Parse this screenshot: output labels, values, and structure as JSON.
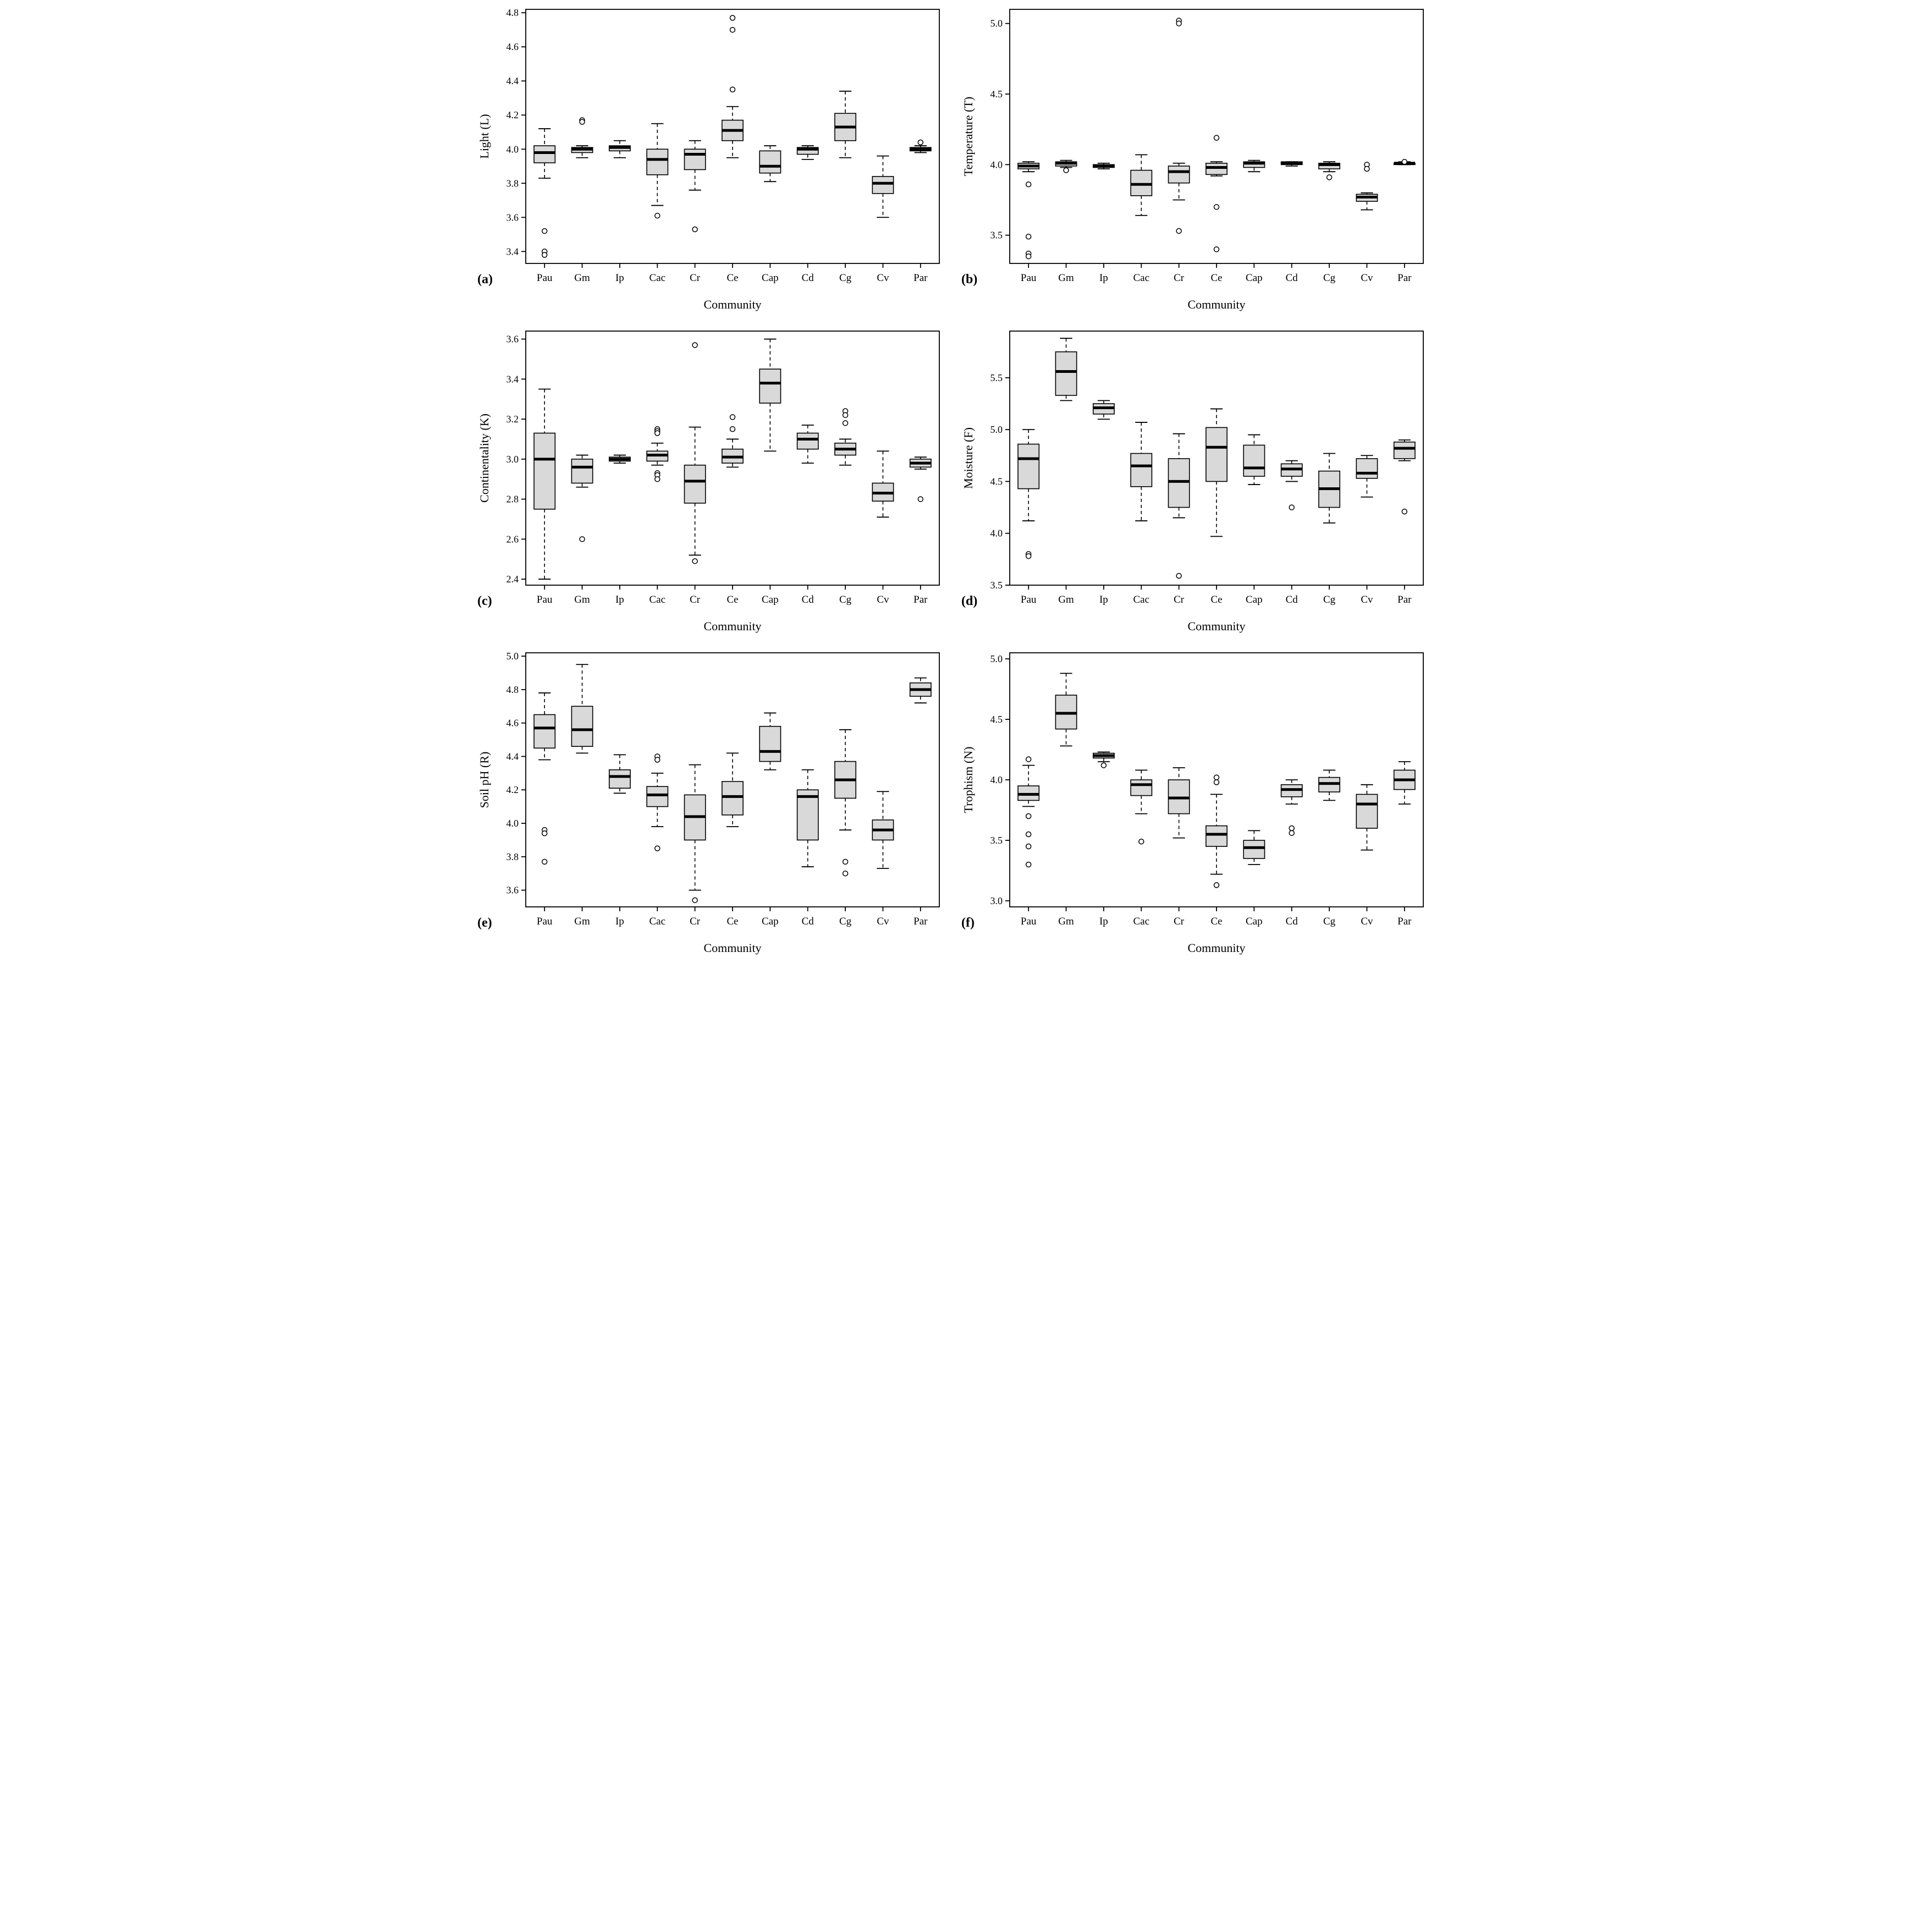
{
  "figure": {
    "background": "#ffffff",
    "box_fill": "#d9d9d9",
    "stroke_color": "#000000"
  },
  "chart_data": [
    {
      "type": "boxplot",
      "panel_label": "(a)",
      "ylabel": "Light (L)",
      "xlabel": "Community",
      "categories": [
        "Pau",
        "Gm",
        "Ip",
        "Cac",
        "Cr",
        "Ce",
        "Cap",
        "Cd",
        "Cg",
        "Cv",
        "Par"
      ],
      "ylim": [
        3.33,
        4.82
      ],
      "yticks": [
        3.4,
        3.6,
        3.8,
        4.0,
        4.2,
        4.4,
        4.6,
        4.8
      ],
      "legend": "none",
      "grid": false,
      "series": [
        {
          "category": "Pau",
          "whisker_low": 3.83,
          "q1": 3.92,
          "median": 3.98,
          "q3": 4.02,
          "whisker_high": 4.12,
          "outliers": [
            3.52,
            3.4,
            3.38
          ]
        },
        {
          "category": "Gm",
          "whisker_low": 3.95,
          "q1": 3.98,
          "median": 4.0,
          "q3": 4.01,
          "whisker_high": 4.02,
          "outliers": [
            4.17,
            4.16
          ]
        },
        {
          "category": "Ip",
          "whisker_low": 3.95,
          "q1": 3.99,
          "median": 4.01,
          "q3": 4.02,
          "whisker_high": 4.05,
          "outliers": []
        },
        {
          "category": "Cac",
          "whisker_low": 3.67,
          "q1": 3.85,
          "median": 3.94,
          "q3": 4.0,
          "whisker_high": 4.15,
          "outliers": [
            3.61
          ]
        },
        {
          "category": "Cr",
          "whisker_low": 3.76,
          "q1": 3.88,
          "median": 3.97,
          "q3": 4.0,
          "whisker_high": 4.05,
          "outliers": [
            3.53
          ]
        },
        {
          "category": "Ce",
          "whisker_low": 3.95,
          "q1": 4.05,
          "median": 4.11,
          "q3": 4.17,
          "whisker_high": 4.25,
          "outliers": [
            4.35,
            4.7,
            4.77
          ]
        },
        {
          "category": "Cap",
          "whisker_low": 3.81,
          "q1": 3.86,
          "median": 3.9,
          "q3": 3.99,
          "whisker_high": 4.02,
          "outliers": []
        },
        {
          "category": "Cd",
          "whisker_low": 3.94,
          "q1": 3.97,
          "median": 4.0,
          "q3": 4.01,
          "whisker_high": 4.02,
          "outliers": []
        },
        {
          "category": "Cg",
          "whisker_low": 3.95,
          "q1": 4.05,
          "median": 4.13,
          "q3": 4.21,
          "whisker_high": 4.34,
          "outliers": []
        },
        {
          "category": "Cv",
          "whisker_low": 3.6,
          "q1": 3.74,
          "median": 3.8,
          "q3": 3.84,
          "whisker_high": 3.96,
          "outliers": []
        },
        {
          "category": "Par",
          "whisker_low": 3.98,
          "q1": 3.99,
          "median": 4.0,
          "q3": 4.01,
          "whisker_high": 4.02,
          "outliers": [
            4.04
          ]
        }
      ]
    },
    {
      "type": "boxplot",
      "panel_label": "(b)",
      "ylabel": "Temperature (T)",
      "xlabel": "Community",
      "categories": [
        "Pau",
        "Gm",
        "Ip",
        "Cac",
        "Cr",
        "Ce",
        "Cap",
        "Cd",
        "Cg",
        "Cv",
        "Par"
      ],
      "ylim": [
        3.3,
        5.1
      ],
      "yticks": [
        3.5,
        4.0,
        4.5,
        5.0
      ],
      "legend": "none",
      "grid": false,
      "series": [
        {
          "category": "Pau",
          "whisker_low": 3.95,
          "q1": 3.97,
          "median": 3.99,
          "q3": 4.01,
          "whisker_high": 4.02,
          "outliers": [
            3.86,
            3.49,
            3.37,
            3.35
          ]
        },
        {
          "category": "Gm",
          "whisker_low": 3.98,
          "q1": 3.99,
          "median": 4.01,
          "q3": 4.02,
          "whisker_high": 4.03,
          "outliers": [
            3.96
          ]
        },
        {
          "category": "Ip",
          "whisker_low": 3.97,
          "q1": 3.98,
          "median": 3.99,
          "q3": 4.0,
          "whisker_high": 4.01,
          "outliers": []
        },
        {
          "category": "Cac",
          "whisker_low": 3.64,
          "q1": 3.78,
          "median": 3.86,
          "q3": 3.96,
          "whisker_high": 4.07,
          "outliers": []
        },
        {
          "category": "Cr",
          "whisker_low": 3.75,
          "q1": 3.87,
          "median": 3.95,
          "q3": 3.99,
          "whisker_high": 4.01,
          "outliers": [
            5.02,
            5.0,
            3.53
          ]
        },
        {
          "category": "Ce",
          "whisker_low": 3.92,
          "q1": 3.93,
          "median": 3.98,
          "q3": 4.01,
          "whisker_high": 4.02,
          "outliers": [
            4.19,
            3.7,
            3.4
          ]
        },
        {
          "category": "Cap",
          "whisker_low": 3.95,
          "q1": 3.98,
          "median": 4.01,
          "q3": 4.02,
          "whisker_high": 4.03,
          "outliers": []
        },
        {
          "category": "Cd",
          "whisker_low": 3.99,
          "q1": 4.0,
          "median": 4.01,
          "q3": 4.02,
          "whisker_high": 4.02,
          "outliers": []
        },
        {
          "category": "Cg",
          "whisker_low": 3.95,
          "q1": 3.97,
          "median": 4.0,
          "q3": 4.01,
          "whisker_high": 4.02,
          "outliers": [
            3.91
          ]
        },
        {
          "category": "Cv",
          "whisker_low": 3.68,
          "q1": 3.74,
          "median": 3.77,
          "q3": 3.79,
          "whisker_high": 3.8,
          "outliers": [
            4.0,
            3.97
          ]
        },
        {
          "category": "Par",
          "whisker_low": 4.0,
          "q1": 4.0,
          "median": 4.01,
          "q3": 4.01,
          "whisker_high": 4.02,
          "outliers": [
            4.02
          ]
        }
      ]
    },
    {
      "type": "boxplot",
      "panel_label": "(c)",
      "ylabel": "Continentality (K)",
      "xlabel": "Community",
      "categories": [
        "Pau",
        "Gm",
        "Ip",
        "Cac",
        "Cr",
        "Ce",
        "Cap",
        "Cd",
        "Cg",
        "Cv",
        "Par"
      ],
      "ylim": [
        2.37,
        3.64
      ],
      "yticks": [
        2.4,
        2.6,
        2.8,
        3.0,
        3.2,
        3.4,
        3.6
      ],
      "legend": "none",
      "grid": false,
      "series": [
        {
          "category": "Pau",
          "whisker_low": 2.4,
          "q1": 2.75,
          "median": 3.0,
          "q3": 3.13,
          "whisker_high": 3.35,
          "outliers": []
        },
        {
          "category": "Gm",
          "whisker_low": 2.86,
          "q1": 2.88,
          "median": 2.96,
          "q3": 3.0,
          "whisker_high": 3.02,
          "outliers": [
            2.6
          ]
        },
        {
          "category": "Ip",
          "whisker_low": 2.98,
          "q1": 2.99,
          "median": 3.0,
          "q3": 3.01,
          "whisker_high": 3.02,
          "outliers": []
        },
        {
          "category": "Cac",
          "whisker_low": 2.97,
          "q1": 2.99,
          "median": 3.02,
          "q3": 3.04,
          "whisker_high": 3.08,
          "outliers": [
            3.15,
            3.14,
            3.13,
            2.93,
            2.92,
            2.9
          ]
        },
        {
          "category": "Cr",
          "whisker_low": 2.52,
          "q1": 2.78,
          "median": 2.89,
          "q3": 2.97,
          "whisker_high": 3.16,
          "outliers": [
            3.57,
            2.49
          ]
        },
        {
          "category": "Ce",
          "whisker_low": 2.96,
          "q1": 2.98,
          "median": 3.01,
          "q3": 3.05,
          "whisker_high": 3.1,
          "outliers": [
            3.21,
            3.15
          ]
        },
        {
          "category": "Cap",
          "whisker_low": 3.04,
          "q1": 3.28,
          "median": 3.38,
          "q3": 3.45,
          "whisker_high": 3.6,
          "outliers": []
        },
        {
          "category": "Cd",
          "whisker_low": 2.98,
          "q1": 3.05,
          "median": 3.1,
          "q3": 3.13,
          "whisker_high": 3.17,
          "outliers": []
        },
        {
          "category": "Cg",
          "whisker_low": 2.97,
          "q1": 3.02,
          "median": 3.05,
          "q3": 3.08,
          "whisker_high": 3.1,
          "outliers": [
            3.24,
            3.22,
            3.18
          ]
        },
        {
          "category": "Cv",
          "whisker_low": 2.71,
          "q1": 2.79,
          "median": 2.83,
          "q3": 2.88,
          "whisker_high": 3.04,
          "outliers": []
        },
        {
          "category": "Par",
          "whisker_low": 2.95,
          "q1": 2.96,
          "median": 2.98,
          "q3": 3.0,
          "whisker_high": 3.01,
          "outliers": [
            2.8
          ]
        }
      ]
    },
    {
      "type": "boxplot",
      "panel_label": "(d)",
      "ylabel": "Moisture (F)",
      "xlabel": "Community",
      "categories": [
        "Pau",
        "Gm",
        "Ip",
        "Cac",
        "Cr",
        "Ce",
        "Cap",
        "Cd",
        "Cg",
        "Cv",
        "Par"
      ],
      "ylim": [
        3.5,
        5.95
      ],
      "yticks": [
        3.5,
        4.0,
        4.5,
        5.0,
        5.5
      ],
      "legend": "none",
      "grid": false,
      "series": [
        {
          "category": "Pau",
          "whisker_low": 4.12,
          "q1": 4.43,
          "median": 4.72,
          "q3": 4.86,
          "whisker_high": 5.0,
          "outliers": [
            3.8,
            3.78
          ]
        },
        {
          "category": "Gm",
          "whisker_low": 5.28,
          "q1": 5.33,
          "median": 5.56,
          "q3": 5.75,
          "whisker_high": 5.88,
          "outliers": []
        },
        {
          "category": "Ip",
          "whisker_low": 5.1,
          "q1": 5.15,
          "median": 5.21,
          "q3": 5.25,
          "whisker_high": 5.28,
          "outliers": []
        },
        {
          "category": "Cac",
          "whisker_low": 4.12,
          "q1": 4.45,
          "median": 4.65,
          "q3": 4.77,
          "whisker_high": 5.07,
          "outliers": []
        },
        {
          "category": "Cr",
          "whisker_low": 4.15,
          "q1": 4.25,
          "median": 4.5,
          "q3": 4.72,
          "whisker_high": 4.96,
          "outliers": [
            3.59
          ]
        },
        {
          "category": "Ce",
          "whisker_low": 3.97,
          "q1": 4.5,
          "median": 4.83,
          "q3": 5.02,
          "whisker_high": 5.2,
          "outliers": []
        },
        {
          "category": "Cap",
          "whisker_low": 4.47,
          "q1": 4.55,
          "median": 4.63,
          "q3": 4.85,
          "whisker_high": 4.95,
          "outliers": []
        },
        {
          "category": "Cd",
          "whisker_low": 4.5,
          "q1": 4.55,
          "median": 4.62,
          "q3": 4.67,
          "whisker_high": 4.7,
          "outliers": [
            4.25
          ]
        },
        {
          "category": "Cg",
          "whisker_low": 4.1,
          "q1": 4.25,
          "median": 4.43,
          "q3": 4.6,
          "whisker_high": 4.77,
          "outliers": []
        },
        {
          "category": "Cv",
          "whisker_low": 4.35,
          "q1": 4.53,
          "median": 4.58,
          "q3": 4.72,
          "whisker_high": 4.75,
          "outliers": []
        },
        {
          "category": "Par",
          "whisker_low": 4.7,
          "q1": 4.72,
          "median": 4.82,
          "q3": 4.88,
          "whisker_high": 4.9,
          "outliers": [
            4.21
          ]
        }
      ]
    },
    {
      "type": "boxplot",
      "panel_label": "(e)",
      "ylabel": "Soil pH (R)",
      "xlabel": "Community",
      "categories": [
        "Pau",
        "Gm",
        "Ip",
        "Cac",
        "Cr",
        "Ce",
        "Cap",
        "Cd",
        "Cg",
        "Cv",
        "Par"
      ],
      "ylim": [
        3.5,
        5.02
      ],
      "yticks": [
        3.6,
        3.8,
        4.0,
        4.2,
        4.4,
        4.6,
        4.8,
        5.0
      ],
      "legend": "none",
      "grid": false,
      "series": [
        {
          "category": "Pau",
          "whisker_low": 4.38,
          "q1": 4.45,
          "median": 4.57,
          "q3": 4.65,
          "whisker_high": 4.78,
          "outliers": [
            3.96,
            3.94,
            3.77
          ]
        },
        {
          "category": "Gm",
          "whisker_low": 4.42,
          "q1": 4.46,
          "median": 4.56,
          "q3": 4.7,
          "whisker_high": 4.95,
          "outliers": []
        },
        {
          "category": "Ip",
          "whisker_low": 4.18,
          "q1": 4.21,
          "median": 4.28,
          "q3": 4.32,
          "whisker_high": 4.41,
          "outliers": []
        },
        {
          "category": "Cac",
          "whisker_low": 3.98,
          "q1": 4.1,
          "median": 4.17,
          "q3": 4.22,
          "whisker_high": 4.3,
          "outliers": [
            4.4,
            4.38,
            3.85
          ]
        },
        {
          "category": "Cr",
          "whisker_low": 3.6,
          "q1": 3.9,
          "median": 4.04,
          "q3": 4.17,
          "whisker_high": 4.35,
          "outliers": [
            3.54
          ]
        },
        {
          "category": "Ce",
          "whisker_low": 3.98,
          "q1": 4.05,
          "median": 4.16,
          "q3": 4.25,
          "whisker_high": 4.42,
          "outliers": []
        },
        {
          "category": "Cap",
          "whisker_low": 4.32,
          "q1": 4.37,
          "median": 4.43,
          "q3": 4.58,
          "whisker_high": 4.66,
          "outliers": []
        },
        {
          "category": "Cd",
          "whisker_low": 3.74,
          "q1": 3.9,
          "median": 4.16,
          "q3": 4.2,
          "whisker_high": 4.32,
          "outliers": []
        },
        {
          "category": "Cg",
          "whisker_low": 3.96,
          "q1": 4.15,
          "median": 4.26,
          "q3": 4.37,
          "whisker_high": 4.56,
          "outliers": [
            3.77,
            3.7
          ]
        },
        {
          "category": "Cv",
          "whisker_low": 3.73,
          "q1": 3.9,
          "median": 3.96,
          "q3": 4.02,
          "whisker_high": 4.19,
          "outliers": []
        },
        {
          "category": "Par",
          "whisker_low": 4.72,
          "q1": 4.76,
          "median": 4.8,
          "q3": 4.84,
          "whisker_high": 4.87,
          "outliers": []
        }
      ]
    },
    {
      "type": "boxplot",
      "panel_label": "(f)",
      "ylabel": "Trophism (N)",
      "xlabel": "Community",
      "categories": [
        "Pau",
        "Gm",
        "Ip",
        "Cac",
        "Cr",
        "Ce",
        "Cap",
        "Cd",
        "Cg",
        "Cv",
        "Par"
      ],
      "ylim": [
        2.95,
        5.05
      ],
      "yticks": [
        3.0,
        3.5,
        4.0,
        4.5,
        5.0
      ],
      "legend": "none",
      "grid": false,
      "series": [
        {
          "category": "Pau",
          "whisker_low": 3.78,
          "q1": 3.83,
          "median": 3.88,
          "q3": 3.95,
          "whisker_high": 4.12,
          "outliers": [
            4.17,
            3.7,
            3.55,
            3.45,
            3.3
          ]
        },
        {
          "category": "Gm",
          "whisker_low": 4.28,
          "q1": 4.42,
          "median": 4.55,
          "q3": 4.7,
          "whisker_high": 4.88,
          "outliers": []
        },
        {
          "category": "Ip",
          "whisker_low": 4.15,
          "q1": 4.18,
          "median": 4.2,
          "q3": 4.22,
          "whisker_high": 4.23,
          "outliers": [
            4.12
          ]
        },
        {
          "category": "Cac",
          "whisker_low": 3.72,
          "q1": 3.87,
          "median": 3.96,
          "q3": 4.0,
          "whisker_high": 4.08,
          "outliers": [
            3.49
          ]
        },
        {
          "category": "Cr",
          "whisker_low": 3.52,
          "q1": 3.72,
          "median": 3.85,
          "q3": 4.0,
          "whisker_high": 4.1,
          "outliers": []
        },
        {
          "category": "Ce",
          "whisker_low": 3.22,
          "q1": 3.45,
          "median": 3.55,
          "q3": 3.62,
          "whisker_high": 3.88,
          "outliers": [
            4.02,
            3.98,
            3.13
          ]
        },
        {
          "category": "Cap",
          "whisker_low": 3.3,
          "q1": 3.35,
          "median": 3.44,
          "q3": 3.5,
          "whisker_high": 3.58,
          "outliers": []
        },
        {
          "category": "Cd",
          "whisker_low": 3.8,
          "q1": 3.86,
          "median": 3.92,
          "q3": 3.96,
          "whisker_high": 4.0,
          "outliers": [
            3.6,
            3.56
          ]
        },
        {
          "category": "Cg",
          "whisker_low": 3.83,
          "q1": 3.9,
          "median": 3.97,
          "q3": 4.02,
          "whisker_high": 4.08,
          "outliers": []
        },
        {
          "category": "Cv",
          "whisker_low": 3.42,
          "q1": 3.6,
          "median": 3.8,
          "q3": 3.88,
          "whisker_high": 3.96,
          "outliers": []
        },
        {
          "category": "Par",
          "whisker_low": 3.8,
          "q1": 3.92,
          "median": 4.0,
          "q3": 4.08,
          "whisker_high": 4.15,
          "outliers": []
        }
      ]
    }
  ]
}
